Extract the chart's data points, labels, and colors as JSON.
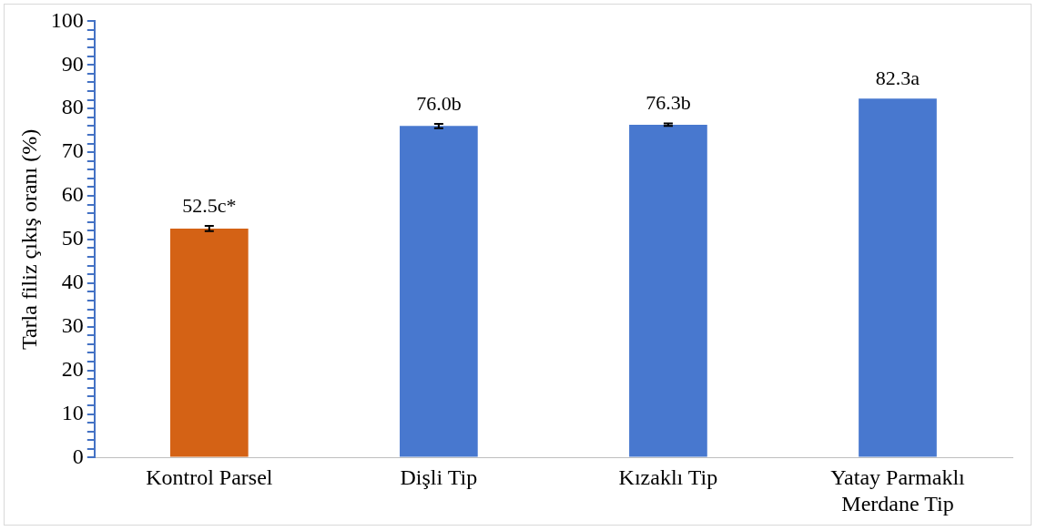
{
  "chart_data": {
    "type": "bar",
    "ylabel": "Tarla filiz çıkış oranı (%)",
    "categories": [
      "Kontrol Parsel",
      "Dişli Tip",
      "Kızaklı Tip",
      "Yatay Parmaklı Merdane Tip"
    ],
    "values": [
      52.5,
      76.0,
      76.3,
      82.3
    ],
    "colors": [
      "#d46215",
      "#4878cf",
      "#4878cf",
      "#4878cf"
    ],
    "errors": [
      0.6,
      0.5,
      0.3,
      null
    ],
    "value_labels": [
      "52.5c*",
      "76.0b",
      "76.3b",
      "82.3a"
    ],
    "ylim": [
      0,
      100
    ],
    "yticks": [
      0,
      {
        "value": 2,
        "label": null
      },
      {
        "value": 4,
        "label": null
      },
      {
        "value": 6,
        "label": null
      },
      {
        "value": 8,
        "label": null
      },
      10,
      {
        "value": 12,
        "label": null
      },
      {
        "value": 14,
        "label": null
      },
      {
        "value": 16,
        "label": null
      },
      {
        "value": 18,
        "label": null
      },
      20,
      {
        "value": 22,
        "label": null
      },
      {
        "value": 24,
        "label": null
      },
      {
        "value": 26,
        "label": null
      },
      {
        "value": 28,
        "label": null
      },
      30,
      {
        "value": 32,
        "label": null
      },
      {
        "value": 34,
        "label": null
      },
      {
        "value": 36,
        "label": null
      },
      {
        "value": 38,
        "label": null
      },
      40,
      {
        "value": 42,
        "label": null
      },
      {
        "value": 44,
        "label": null
      },
      {
        "value": 46,
        "label": null
      },
      {
        "value": 48,
        "label": null
      },
      50,
      {
        "value": 52,
        "label": null
      },
      {
        "value": 54,
        "label": null
      },
      {
        "value": 56,
        "label": null
      },
      {
        "value": 58,
        "label": null
      },
      60,
      {
        "value": 62,
        "label": null
      },
      {
        "value": 64,
        "label": null
      },
      {
        "value": 66,
        "label": null
      },
      {
        "value": 68,
        "label": null
      },
      70,
      {
        "value": 72,
        "label": null
      },
      {
        "value": 74,
        "label": null
      },
      {
        "value": 76,
        "label": null
      },
      {
        "value": 78,
        "label": null
      },
      80,
      {
        "value": 82,
        "label": null
      },
      {
        "value": 84,
        "label": null
      },
      {
        "value": 86,
        "label": null
      },
      {
        "value": 88,
        "label": null
      },
      90,
      {
        "value": 92,
        "label": null
      },
      {
        "value": 94,
        "label": null
      },
      {
        "value": 96,
        "label": null
      },
      {
        "value": 98,
        "label": null
      },
      100
    ],
    "grid": false,
    "legend": false
  }
}
